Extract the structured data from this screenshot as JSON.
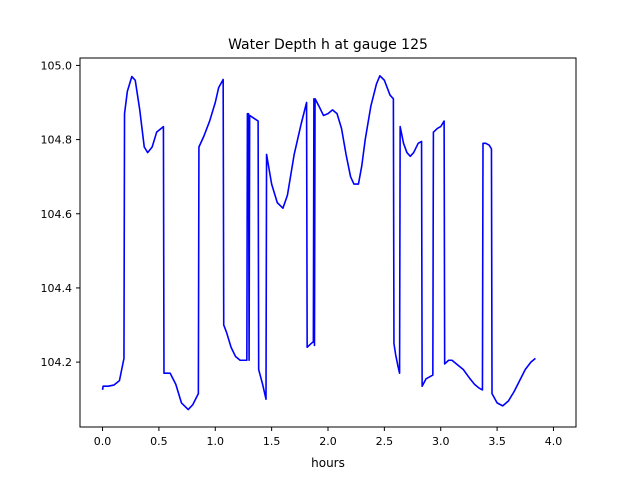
{
  "chart_data": {
    "type": "line",
    "title": "Water Depth h at gauge 125",
    "xlabel": "hours",
    "ylabel": "",
    "xlim": [
      -0.2,
      4.2
    ],
    "ylim": [
      104.025,
      105.02
    ],
    "xticks": [
      0.0,
      0.5,
      1.0,
      1.5,
      2.0,
      2.5,
      3.0,
      3.5,
      4.0
    ],
    "xtick_labels": [
      "0.0",
      "0.5",
      "1.0",
      "1.5",
      "2.0",
      "2.5",
      "3.0",
      "3.5",
      "4.0"
    ],
    "yticks": [
      104.2,
      104.4,
      104.6,
      104.8,
      105.0
    ],
    "ytick_labels": [
      "104.2",
      "104.4",
      "104.6",
      "104.8",
      "105.0"
    ],
    "grid": false,
    "series": [
      {
        "color": "#0000ff",
        "points": [
          [
            0.0,
            104.125
          ],
          [
            0.005,
            104.135
          ],
          [
            0.05,
            104.135
          ],
          [
            0.1,
            104.138
          ],
          [
            0.15,
            104.15
          ],
          [
            0.19,
            104.21
          ],
          [
            0.195,
            104.87
          ],
          [
            0.22,
            104.93
          ],
          [
            0.26,
            104.97
          ],
          [
            0.29,
            104.96
          ],
          [
            0.33,
            104.88
          ],
          [
            0.37,
            104.78
          ],
          [
            0.4,
            104.765
          ],
          [
            0.44,
            104.78
          ],
          [
            0.48,
            104.82
          ],
          [
            0.54,
            104.835
          ],
          [
            0.545,
            104.17
          ],
          [
            0.6,
            104.17
          ],
          [
            0.65,
            104.14
          ],
          [
            0.7,
            104.09
          ],
          [
            0.76,
            104.072
          ],
          [
            0.8,
            104.085
          ],
          [
            0.85,
            104.115
          ],
          [
            0.855,
            104.78
          ],
          [
            0.9,
            104.81
          ],
          [
            0.95,
            104.85
          ],
          [
            1.0,
            104.9
          ],
          [
            1.03,
            104.94
          ],
          [
            1.07,
            104.962
          ],
          [
            1.075,
            104.3
          ],
          [
            1.1,
            104.28
          ],
          [
            1.14,
            104.24
          ],
          [
            1.18,
            104.215
          ],
          [
            1.22,
            104.205
          ],
          [
            1.28,
            104.205
          ],
          [
            1.285,
            104.87
          ],
          [
            1.295,
            104.87
          ],
          [
            1.3,
            104.205
          ],
          [
            1.305,
            104.865
          ],
          [
            1.38,
            104.85
          ],
          [
            1.385,
            104.18
          ],
          [
            1.42,
            104.14
          ],
          [
            1.45,
            104.1
          ],
          [
            1.455,
            104.76
          ],
          [
            1.5,
            104.68
          ],
          [
            1.55,
            104.63
          ],
          [
            1.6,
            104.615
          ],
          [
            1.64,
            104.65
          ],
          [
            1.7,
            104.76
          ],
          [
            1.76,
            104.84
          ],
          [
            1.81,
            104.9
          ],
          [
            1.815,
            104.24
          ],
          [
            1.85,
            104.25
          ],
          [
            1.87,
            104.255
          ],
          [
            1.875,
            104.91
          ],
          [
            1.88,
            104.245
          ],
          [
            1.885,
            104.91
          ],
          [
            1.92,
            104.89
          ],
          [
            1.96,
            104.865
          ],
          [
            2.0,
            104.87
          ],
          [
            2.04,
            104.88
          ],
          [
            2.08,
            104.87
          ],
          [
            2.12,
            104.83
          ],
          [
            2.16,
            104.76
          ],
          [
            2.2,
            104.7
          ],
          [
            2.23,
            104.68
          ],
          [
            2.27,
            104.68
          ],
          [
            2.3,
            104.73
          ],
          [
            2.33,
            104.8
          ],
          [
            2.38,
            104.89
          ],
          [
            2.43,
            104.95
          ],
          [
            2.46,
            104.972
          ],
          [
            2.5,
            104.96
          ],
          [
            2.55,
            104.92
          ],
          [
            2.58,
            104.91
          ],
          [
            2.585,
            104.25
          ],
          [
            2.6,
            104.22
          ],
          [
            2.62,
            104.19
          ],
          [
            2.635,
            104.17
          ],
          [
            2.64,
            104.835
          ],
          [
            2.67,
            104.79
          ],
          [
            2.7,
            104.765
          ],
          [
            2.73,
            104.755
          ],
          [
            2.76,
            104.765
          ],
          [
            2.8,
            104.79
          ],
          [
            2.83,
            104.795
          ],
          [
            2.835,
            104.135
          ],
          [
            2.87,
            104.155
          ],
          [
            2.9,
            104.16
          ],
          [
            2.93,
            104.165
          ],
          [
            2.935,
            104.82
          ],
          [
            2.97,
            104.83
          ],
          [
            3.0,
            104.835
          ],
          [
            3.03,
            104.85
          ],
          [
            3.035,
            104.195
          ],
          [
            3.07,
            104.205
          ],
          [
            3.1,
            104.205
          ],
          [
            3.14,
            104.195
          ],
          [
            3.2,
            104.18
          ],
          [
            3.26,
            104.155
          ],
          [
            3.3,
            104.14
          ],
          [
            3.34,
            104.13
          ],
          [
            3.37,
            104.125
          ],
          [
            3.375,
            104.79
          ],
          [
            3.4,
            104.79
          ],
          [
            3.43,
            104.785
          ],
          [
            3.45,
            104.775
          ],
          [
            3.455,
            104.115
          ],
          [
            3.5,
            104.09
          ],
          [
            3.55,
            104.082
          ],
          [
            3.6,
            104.095
          ],
          [
            3.65,
            104.12
          ],
          [
            3.7,
            104.15
          ],
          [
            3.75,
            104.18
          ],
          [
            3.8,
            104.2
          ],
          [
            3.84,
            104.21
          ]
        ]
      }
    ]
  }
}
